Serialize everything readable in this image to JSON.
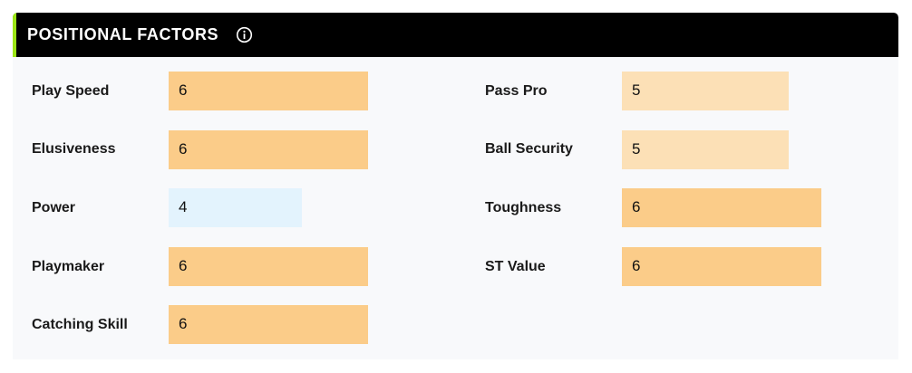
{
  "panel": {
    "title": "POSITIONAL FACTORS",
    "info_icon": "info-circle-icon",
    "accent_color": "#9be515"
  },
  "colors": {
    "high": "#fbcc89",
    "mid": "#fce0b6",
    "low": "#e3f3fd"
  },
  "max_scale": 6,
  "left_factors": [
    {
      "label": "Play Speed",
      "value": "6",
      "color": "#fbcc89"
    },
    {
      "label": "Elusiveness",
      "value": "6",
      "color": "#fbcc89"
    },
    {
      "label": "Power",
      "value": "4",
      "color": "#e3f3fd"
    },
    {
      "label": "Playmaker",
      "value": "6",
      "color": "#fbcc89"
    },
    {
      "label": "Catching Skill",
      "value": "6",
      "color": "#fbcc89"
    }
  ],
  "right_factors": [
    {
      "label": "Pass Pro",
      "value": "5",
      "color": "#fce0b6"
    },
    {
      "label": "Ball Security",
      "value": "5",
      "color": "#fce0b6"
    },
    {
      "label": "Toughness",
      "value": "6",
      "color": "#fbcc89"
    },
    {
      "label": "ST Value",
      "value": "6",
      "color": "#fbcc89"
    }
  ]
}
